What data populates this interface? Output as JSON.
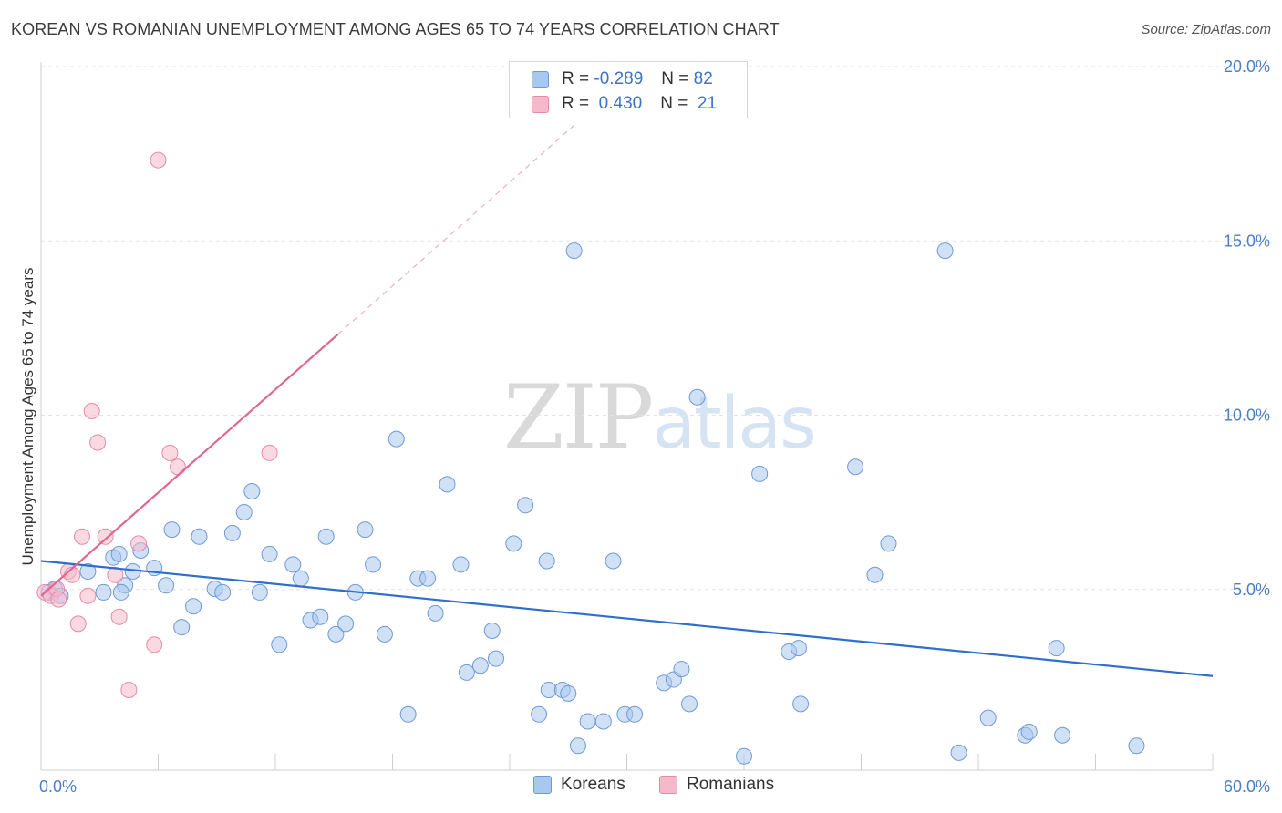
{
  "header": {
    "title": "KOREAN VS ROMANIAN UNEMPLOYMENT AMONG AGES 65 TO 74 YEARS CORRELATION CHART",
    "source": "Source: ZipAtlas.com"
  },
  "watermark": {
    "zip": "ZIP",
    "atlas": "atlas"
  },
  "stats_legend": {
    "rows": [
      {
        "r_label": "R =",
        "r_value": "-0.289",
        "n_label": "N =",
        "n_value": "82",
        "color": "#a9c8ef"
      },
      {
        "r_label": "R =",
        "r_value": " 0.430",
        "n_label": "N =",
        "n_value": "21",
        "color": "#f6b9cc"
      }
    ]
  },
  "bottom_legend": {
    "items": [
      {
        "label": "Koreans",
        "color": "#a9c8ef"
      },
      {
        "label": "Romanians",
        "color": "#f6b9cc"
      }
    ]
  },
  "chart_data": {
    "type": "scatter",
    "title": "KOREAN VS ROMANIAN UNEMPLOYMENT AMONG AGES 65 TO 74 YEARS CORRELATION CHART",
    "ylabel": "Unemployment Among Ages 65 to 74 years",
    "xlim": [
      0,
      60
    ],
    "ylim": [
      0,
      20
    ],
    "x_ticks": [
      {
        "value": 0,
        "label": "0.0%"
      },
      {
        "value": 60,
        "label": "60.0%"
      }
    ],
    "y_ticks": [
      {
        "value": 5,
        "label": "5.0%"
      },
      {
        "value": 10,
        "label": "10.0%"
      },
      {
        "value": 15,
        "label": "15.0%"
      },
      {
        "value": 20,
        "label": "20.0%"
      }
    ],
    "grid": "horizontal dashed",
    "series": [
      {
        "name": "Koreans",
        "color": "#a9c8ef",
        "stroke": "#6f9ad6",
        "trend": {
          "x": [
            0,
            60
          ],
          "y": [
            6.0,
            2.7
          ],
          "color": "#2f6fcc"
        },
        "points": [
          [
            0.4,
            5.1
          ],
          [
            0.7,
            5.2
          ],
          [
            1.0,
            5.0
          ],
          [
            2.4,
            5.7
          ],
          [
            3.2,
            5.1
          ],
          [
            3.7,
            6.1
          ],
          [
            4.0,
            6.2
          ],
          [
            4.3,
            5.3
          ],
          [
            4.7,
            5.7
          ],
          [
            5.1,
            6.3
          ],
          [
            5.8,
            5.8
          ],
          [
            6.4,
            5.3
          ],
          [
            6.7,
            6.9
          ],
          [
            7.2,
            4.1
          ],
          [
            7.8,
            4.7
          ],
          [
            8.1,
            6.7
          ],
          [
            8.9,
            5.2
          ],
          [
            9.3,
            5.1
          ],
          [
            9.8,
            6.8
          ],
          [
            10.4,
            7.4
          ],
          [
            10.8,
            8.0
          ],
          [
            11.2,
            5.1
          ],
          [
            11.7,
            6.2
          ],
          [
            12.2,
            3.6
          ],
          [
            12.9,
            5.9
          ],
          [
            13.3,
            5.5
          ],
          [
            13.8,
            4.3
          ],
          [
            14.3,
            4.4
          ],
          [
            14.6,
            6.7
          ],
          [
            15.1,
            3.9
          ],
          [
            15.6,
            4.2
          ],
          [
            16.1,
            5.1
          ],
          [
            16.6,
            6.9
          ],
          [
            17.0,
            5.9
          ],
          [
            17.6,
            3.9
          ],
          [
            18.2,
            9.5
          ],
          [
            18.8,
            1.6
          ],
          [
            19.3,
            5.5
          ],
          [
            19.8,
            5.5
          ],
          [
            20.2,
            4.5
          ],
          [
            20.8,
            8.2
          ],
          [
            21.5,
            5.9
          ],
          [
            21.8,
            2.8
          ],
          [
            22.5,
            3.0
          ],
          [
            23.1,
            4.0
          ],
          [
            23.3,
            3.2
          ],
          [
            24.2,
            6.5
          ],
          [
            24.8,
            7.6
          ],
          [
            25.5,
            1.6
          ],
          [
            25.9,
            6.0
          ],
          [
            26.0,
            2.3
          ],
          [
            26.7,
            2.3
          ],
          [
            27.0,
            2.2
          ],
          [
            27.3,
            14.9
          ],
          [
            27.5,
            0.7
          ],
          [
            28.0,
            1.4
          ],
          [
            28.8,
            1.4
          ],
          [
            29.3,
            6.0
          ],
          [
            29.9,
            1.6
          ],
          [
            30.4,
            1.6
          ],
          [
            31.9,
            2.5
          ],
          [
            32.4,
            2.6
          ],
          [
            32.8,
            2.9
          ],
          [
            33.2,
            1.9
          ],
          [
            33.6,
            10.7
          ],
          [
            36.0,
            0.4
          ],
          [
            36.8,
            8.5
          ],
          [
            38.3,
            3.4
          ],
          [
            38.8,
            3.5
          ],
          [
            38.9,
            1.9
          ],
          [
            41.7,
            8.7
          ],
          [
            42.7,
            5.6
          ],
          [
            43.4,
            6.5
          ],
          [
            46.3,
            14.9
          ],
          [
            47.0,
            0.5
          ],
          [
            48.5,
            1.5
          ],
          [
            50.4,
            1.0
          ],
          [
            50.6,
            1.1
          ],
          [
            52.0,
            3.5
          ],
          [
            52.3,
            1.0
          ],
          [
            56.1,
            0.7
          ],
          [
            4.1,
            5.1
          ]
        ]
      },
      {
        "name": "Romanians",
        "color": "#f6b9cc",
        "stroke": "#e68aa8",
        "trend": {
          "x": [
            0,
            15.2
          ],
          "y": [
            5.0,
            12.5
          ],
          "extend_x": 27.3,
          "extend_y": 18.5,
          "color": "#e0688f"
        },
        "points": [
          [
            0.2,
            5.1
          ],
          [
            0.5,
            5.0
          ],
          [
            0.8,
            5.2
          ],
          [
            1.4,
            5.7
          ],
          [
            1.6,
            5.6
          ],
          [
            1.9,
            4.2
          ],
          [
            2.1,
            6.7
          ],
          [
            2.4,
            5.0
          ],
          [
            2.6,
            10.3
          ],
          [
            2.9,
            9.4
          ],
          [
            3.3,
            6.7
          ],
          [
            3.8,
            5.6
          ],
          [
            4.0,
            4.4
          ],
          [
            4.5,
            2.3
          ],
          [
            5.0,
            6.5
          ],
          [
            5.8,
            3.6
          ],
          [
            6.0,
            17.5
          ],
          [
            6.6,
            9.1
          ],
          [
            7.0,
            8.7
          ],
          [
            11.7,
            9.1
          ],
          [
            0.9,
            4.9
          ]
        ]
      }
    ]
  }
}
